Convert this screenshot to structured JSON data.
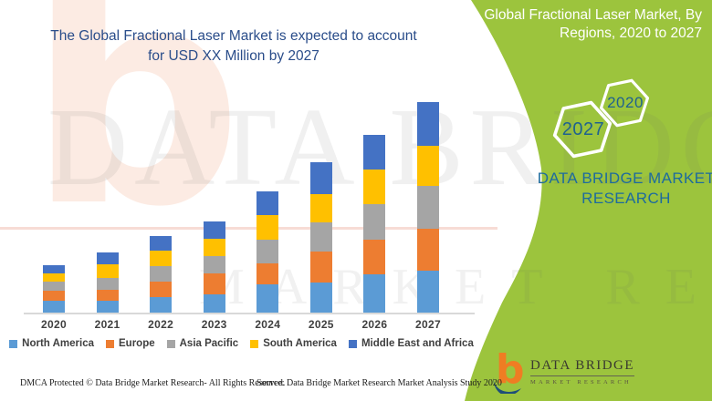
{
  "title": {
    "line1": "The Global Fractional Laser Market is expected to account",
    "line2": "for USD XX Million by 2027"
  },
  "side_panel": {
    "heading_line1": "Global Fractional Laser Market, By",
    "heading_line2": "Regions, 2020 to 2027",
    "hexagons": [
      {
        "label": "2027"
      },
      {
        "label": "2020"
      }
    ],
    "brand_line1": "DATA BRIDGE MARKET",
    "brand_line2": "RESEARCH"
  },
  "logo": {
    "name": "DATA BRIDGE",
    "subtitle": "MARKET RESEARCH"
  },
  "watermark": {
    "big_letter": "b",
    "row1": "DATA BRIDGE",
    "row2": "MARKET RESEARCH"
  },
  "footer": {
    "left": "DMCA Protected © Data Bridge Market Research- All Rights Reserved.",
    "right": "Source: Data Bridge Market Research Market Analysis Study 2020"
  },
  "colors": {
    "panel_green": "#9CC43D",
    "title_blue": "#2A4D8A",
    "brand_blue": "#1D6B9E",
    "hexagon_year_blue": "#1F628F",
    "axis_text_gray": "#3F3F3F",
    "axis_line_gray": "#D9D9D9",
    "logo_orange": "#EF7D23",
    "logo_navy": "#1E4E79"
  },
  "chart_data": {
    "type": "bar",
    "stacked": true,
    "title": "Global Fractional Laser Market, By Regions, 2020 to 2027",
    "xlabel": "",
    "ylabel": "",
    "y_axis_visible": false,
    "values_unit": "relative-height (no numeric axis shown in figure)",
    "legend_position": "bottom",
    "categories": [
      "2020",
      "2021",
      "2022",
      "2023",
      "2024",
      "2025",
      "2026",
      "2027"
    ],
    "series": [
      {
        "name": "North America",
        "color": "#5B9BD5",
        "values": [
          13,
          13,
          17,
          20,
          31,
          33,
          42,
          46
        ]
      },
      {
        "name": "Europe",
        "color": "#ED7D31",
        "values": [
          11,
          12,
          17,
          23,
          23,
          34,
          38,
          46
        ]
      },
      {
        "name": "Asia Pacific",
        "color": "#A5A5A5",
        "values": [
          10,
          13,
          17,
          19,
          26,
          32,
          39,
          47
        ]
      },
      {
        "name": "South America",
        "color": "#FFC000",
        "values": [
          9,
          15,
          17,
          19,
          27,
          31,
          38,
          44
        ]
      },
      {
        "name": "Middle East and Africa",
        "color": "#4472C4",
        "values": [
          9,
          13,
          16,
          19,
          26,
          35,
          38,
          48
        ]
      }
    ]
  }
}
